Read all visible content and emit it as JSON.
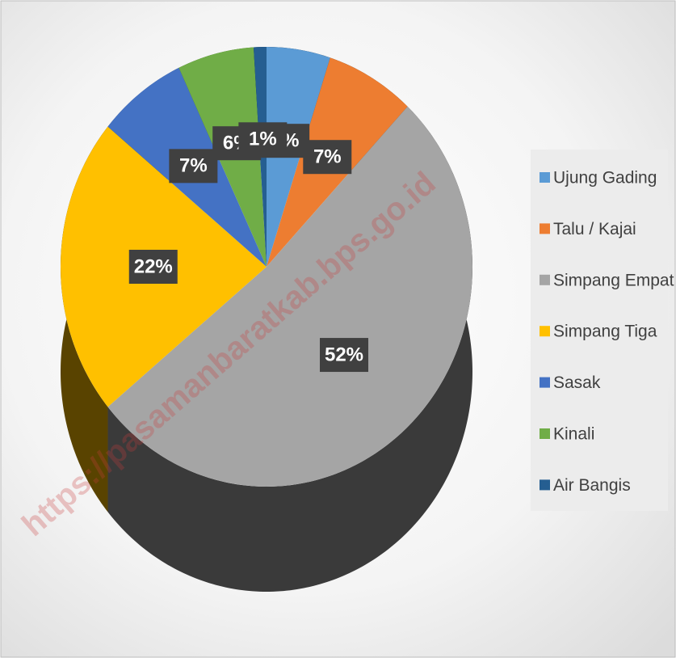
{
  "chart_data": {
    "type": "pie",
    "categories": [
      "Ujung Gading",
      "Talu / Kajai",
      "Simpang Empat",
      "Simpang Tiga",
      "Sasak",
      "Kinali",
      "Air Bangis"
    ],
    "values": [
      5,
      7,
      52,
      22,
      7,
      6,
      1
    ],
    "value_labels": [
      "5%",
      "7%",
      "52%",
      "22%",
      "7%",
      "6%",
      "1%"
    ],
    "colors": [
      "#5b9bd5",
      "#ed7d31",
      "#a5a5a5",
      "#ffc000",
      "#4472c4",
      "#70ad47",
      "#255e91"
    ],
    "legend": "right",
    "watermark": "https://pasamanbaratkab.bps.go.id"
  }
}
